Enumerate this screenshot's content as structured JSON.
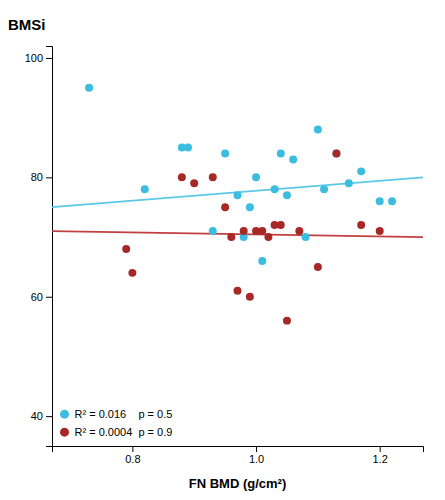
{
  "chart_data": {
    "type": "scatter",
    "xlabel": "FN BMD (g/cm²)",
    "ylabel": "BMSi",
    "xlim": [
      0.67,
      1.27
    ],
    "ylim": [
      35,
      102
    ],
    "xticks": [
      0.8,
      {
        "value": 1.0,
        "label": "1.0"
      },
      1.2
    ],
    "yticks": [
      40,
      60,
      80,
      100
    ],
    "grid": false,
    "legend": "lower left",
    "series": [
      {
        "name": "R² = 0.016    p = 0.5",
        "type": "scatter",
        "marker": "circle",
        "color": "#3BBDE0",
        "x": [
          0.73,
          0.82,
          0.88,
          0.89,
          0.93,
          0.95,
          0.97,
          0.98,
          0.99,
          1.0,
          1.01,
          1.03,
          1.04,
          1.05,
          1.06,
          1.08,
          1.1,
          1.11,
          1.13,
          1.15,
          1.17,
          1.2,
          1.22
        ],
        "values": [
          95,
          78,
          85,
          85,
          71,
          84,
          77,
          70,
          75,
          80,
          66,
          78,
          84,
          77,
          83,
          70,
          88,
          78,
          84,
          79,
          81,
          76,
          76
        ]
      },
      {
        "name": "R² = 0.0004  p = 0.9",
        "type": "scatter",
        "marker": "circle",
        "color": "#A82828",
        "x": [
          0.79,
          0.8,
          0.88,
          0.9,
          0.93,
          0.95,
          0.96,
          0.97,
          0.98,
          0.99,
          1.0,
          1.01,
          1.02,
          1.03,
          1.04,
          1.05,
          1.07,
          1.1,
          1.13,
          1.17,
          1.2
        ],
        "values": [
          68,
          64,
          80,
          79,
          80,
          75,
          70,
          61,
          71,
          60,
          71,
          71,
          70,
          72,
          72,
          56,
          71,
          65,
          84,
          72,
          71
        ]
      },
      {
        "type": "line",
        "line_style": "solid",
        "color": "#5BC8E8",
        "x": [
          0.67,
          1.27
        ],
        "values": [
          75,
          80
        ]
      },
      {
        "type": "line",
        "line_style": "solid",
        "color": "#C04040",
        "x": [
          0.67,
          1.27
        ],
        "values": [
          71,
          70
        ]
      }
    ]
  }
}
